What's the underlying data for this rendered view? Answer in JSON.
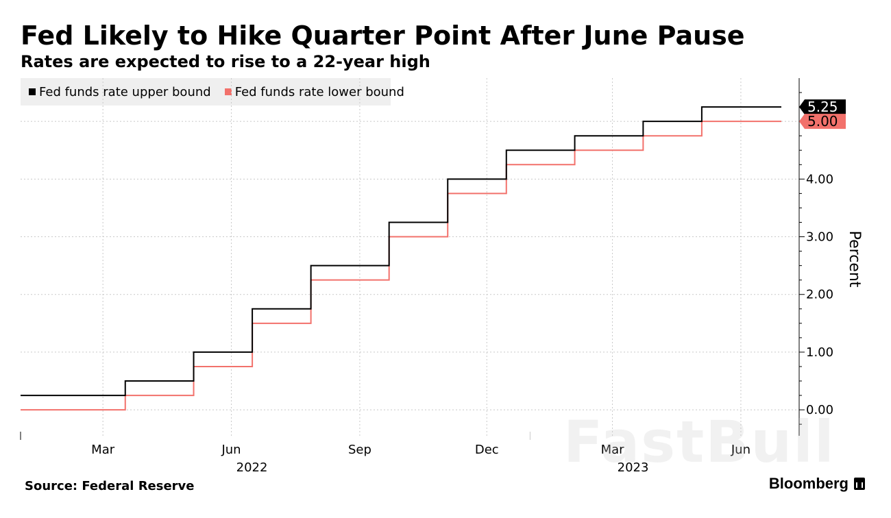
{
  "chart_data": {
    "type": "line",
    "title": "Fed Likely to Hike Quarter Point After June Pause",
    "subtitle": "Rates are expected to rise to a 22-year high",
    "ylabel": "Percent",
    "xlabel": "",
    "ylim": [
      -0.45,
      5.75
    ],
    "xlim": [
      "2022-01-01",
      "2023-06-30"
    ],
    "y_ticks": [
      0,
      1,
      2,
      3,
      4
    ],
    "y_tick_labels": [
      "0.00",
      "1.00",
      "2.00",
      "3.00",
      "4.00"
    ],
    "x_ticks": [
      {
        "date": "2022-03-01",
        "label": "Mar"
      },
      {
        "date": "2022-06-01",
        "label": "Jun"
      },
      {
        "date": "2022-09-01",
        "label": "Sep"
      },
      {
        "date": "2022-12-01",
        "label": "Dec"
      },
      {
        "date": "2023-03-01",
        "label": "Mar"
      },
      {
        "date": "2023-06-01",
        "label": "Jun"
      }
    ],
    "year_labels": [
      {
        "date": "2022-06-01",
        "label": "2022"
      },
      {
        "date": "2023-03-01",
        "label": "2023"
      }
    ],
    "grid": true,
    "legend_position": "top-left",
    "series": [
      {
        "name": "Fed funds rate upper bound",
        "color": "#000000",
        "last_label": "5.25",
        "points": [
          [
            "2022-01-01",
            0.25
          ],
          [
            "2022-03-17",
            0.5
          ],
          [
            "2022-05-05",
            1.0
          ],
          [
            "2022-06-16",
            1.75
          ],
          [
            "2022-07-28",
            2.5
          ],
          [
            "2022-09-22",
            3.25
          ],
          [
            "2022-11-03",
            4.0
          ],
          [
            "2022-12-15",
            4.5
          ],
          [
            "2023-02-02",
            4.75
          ],
          [
            "2023-03-23",
            5.0
          ],
          [
            "2023-05-04",
            5.25
          ],
          [
            "2023-06-30",
            5.25
          ]
        ]
      },
      {
        "name": "Fed funds rate lower bound",
        "color": "#f2716b",
        "last_label": "5.00",
        "points": [
          [
            "2022-01-01",
            0.0
          ],
          [
            "2022-03-17",
            0.25
          ],
          [
            "2022-05-05",
            0.75
          ],
          [
            "2022-06-16",
            1.5
          ],
          [
            "2022-07-28",
            2.25
          ],
          [
            "2022-09-22",
            3.0
          ],
          [
            "2022-11-03",
            3.75
          ],
          [
            "2022-12-15",
            4.25
          ],
          [
            "2023-02-02",
            4.5
          ],
          [
            "2023-03-23",
            4.75
          ],
          [
            "2023-05-04",
            5.0
          ],
          [
            "2023-06-30",
            5.0
          ]
        ]
      }
    ]
  },
  "legend": {
    "upper": "Fed funds rate upper bound",
    "lower": "Fed funds rate lower bound"
  },
  "footer": {
    "source": "Source: Federal Reserve",
    "brand": "Bloomberg"
  },
  "watermark": "FastBull"
}
